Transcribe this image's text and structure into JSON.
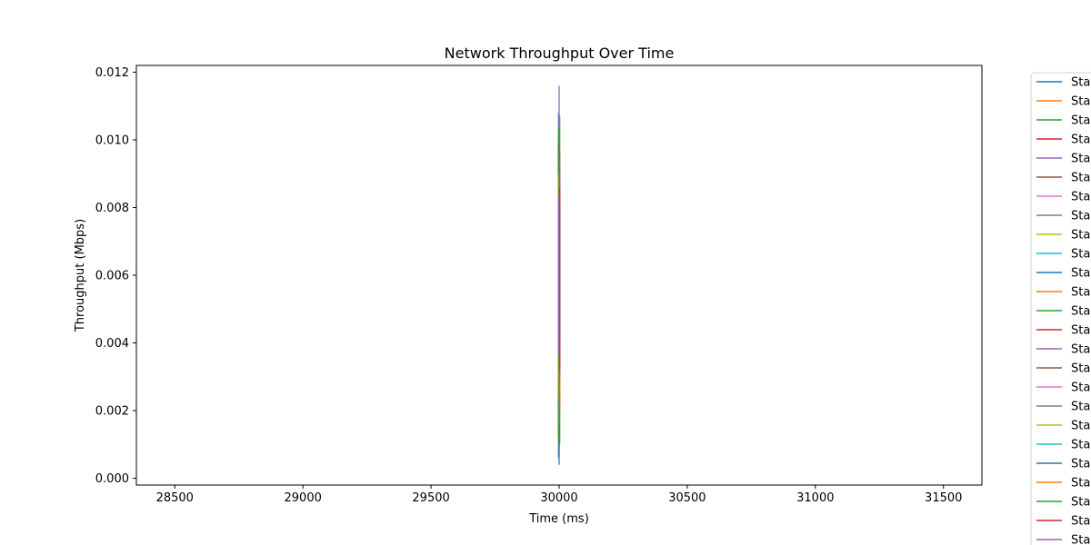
{
  "chart_data": {
    "type": "line",
    "title": "Network Throughput Over Time",
    "xlabel": "Time (ms)",
    "ylabel": "Throughput (Mbps)",
    "xlim": [
      28350,
      31650
    ],
    "ylim": [
      -0.0002,
      0.0122
    ],
    "xticks": [
      28500,
      29000,
      29500,
      30000,
      30500,
      31000,
      31500
    ],
    "xtick_labels": [
      "28500",
      "29000",
      "29500",
      "30000",
      "30500",
      "31000",
      "31500"
    ],
    "yticks": [
      0.0,
      0.002,
      0.004,
      0.006,
      0.008,
      0.01,
      0.012
    ],
    "ytick_labels": [
      "0.000",
      "0.002",
      "0.004",
      "0.006",
      "0.008",
      "0.010",
      "0.012"
    ],
    "grid": false,
    "legend_placement": "outside-right",
    "palette": [
      "#1f77b4",
      "#ff7f0e",
      "#2ca02c",
      "#d62728",
      "#9467bd",
      "#8c564b",
      "#e377c2",
      "#7f7f7f",
      "#bcbd22",
      "#17becf"
    ],
    "x": [
      30000,
      30000
    ],
    "series": [
      {
        "name": "Sta",
        "values": [
          0.0006,
          0.0108
        ]
      },
      {
        "name": "Sta",
        "values": [
          0.0008,
          0.01
        ]
      },
      {
        "name": "Sta",
        "values": [
          0.001,
          0.0107
        ]
      },
      {
        "name": "Sta",
        "values": [
          0.0012,
          0.0098
        ]
      },
      {
        "name": "Sta",
        "values": [
          0.004,
          0.0116
        ]
      },
      {
        "name": "Sta",
        "values": [
          0.002,
          0.0096
        ]
      },
      {
        "name": "Sta",
        "values": [
          0.0015,
          0.009
        ]
      },
      {
        "name": "Sta",
        "values": [
          0.0018,
          0.0095
        ]
      },
      {
        "name": "Sta",
        "values": [
          0.0025,
          0.0092
        ]
      },
      {
        "name": "Sta",
        "values": [
          0.003,
          0.0097
        ]
      },
      {
        "name": "Sta",
        "values": [
          0.0004,
          0.006
        ]
      },
      {
        "name": "Sta",
        "values": [
          0.002,
          0.0094
        ]
      },
      {
        "name": "Sta",
        "values": [
          0.0012,
          0.0102
        ]
      },
      {
        "name": "Sta",
        "values": [
          0.0028,
          0.0088
        ]
      },
      {
        "name": "Sta",
        "values": [
          0.0035,
          0.0091
        ]
      },
      {
        "name": "Sta",
        "values": [
          0.0022,
          0.0099
        ]
      },
      {
        "name": "Sta",
        "values": [
          0.0016,
          0.0087
        ]
      },
      {
        "name": "Sta",
        "values": [
          0.003,
          0.0093
        ]
      },
      {
        "name": "Sta",
        "values": [
          0.0026,
          0.0089
        ]
      },
      {
        "name": "Sta",
        "values": [
          0.0034,
          0.0085
        ]
      },
      {
        "name": "Sta",
        "values": [
          0.004,
          0.008
        ]
      },
      {
        "name": "Sta",
        "values": [
          0.0024,
          0.009
        ]
      },
      {
        "name": "Sta",
        "values": [
          0.001,
          0.0104
        ]
      },
      {
        "name": "Sta",
        "values": [
          0.0032,
          0.0086
        ]
      },
      {
        "name": "Sta",
        "values": [
          0.0036,
          0.0084
        ]
      }
    ]
  }
}
